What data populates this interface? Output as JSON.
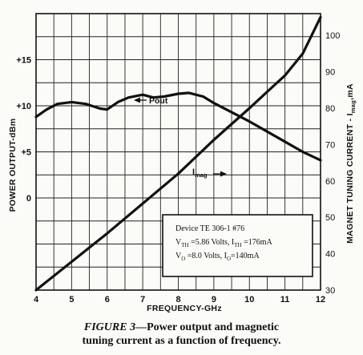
{
  "chart_data": {
    "type": "line",
    "xlabel": "FREQUENCY-GHz",
    "ylabel_left": "POWER OUTPUT-dBm",
    "ylabel_right": "MAGNET TUNING CURRENT - I",
    "ylabel_right_sub": "mag",
    "ylabel_right_unit": ",mA",
    "xlim": [
      4,
      12
    ],
    "ylim_left": [
      -10,
      20
    ],
    "ylim_right": [
      30,
      106
    ],
    "grid": true,
    "x_ticks": [
      "4",
      "5",
      "6",
      "7",
      "8",
      "9",
      "10",
      "11",
      "12"
    ],
    "left_ticks": [
      {
        "value": 15,
        "label": "+15"
      },
      {
        "value": 10,
        "label": "+10"
      },
      {
        "value": 5,
        "label": "+5"
      },
      {
        "value": 0,
        "label": "0"
      }
    ],
    "right_ticks": [
      "30",
      "40",
      "50",
      "60",
      "70",
      "80",
      "90",
      "100"
    ],
    "series": [
      {
        "name": "Pout",
        "axis": "left",
        "x": [
          4.0,
          4.3,
          4.6,
          5.0,
          5.4,
          5.8,
          6.0,
          6.3,
          6.6,
          7.0,
          7.3,
          7.6,
          8.0,
          8.3,
          8.7,
          9.0,
          9.5,
          10.0,
          10.5,
          11.0,
          11.5,
          12.0
        ],
        "y": [
          8.8,
          9.6,
          10.2,
          10.4,
          10.2,
          9.7,
          9.6,
          10.4,
          10.9,
          11.2,
          10.9,
          11.0,
          11.3,
          11.4,
          11.0,
          10.3,
          9.3,
          8.3,
          7.2,
          6.1,
          5.0,
          4.1
        ]
      },
      {
        "name": "I",
        "name_sub": "mag",
        "axis": "right",
        "x": [
          4.0,
          5.0,
          6.0,
          7.0,
          8.0,
          9.0,
          10.0,
          10.5,
          11.0,
          11.5,
          12.0
        ],
        "y": [
          30.0,
          37.8,
          45.6,
          53.8,
          62.0,
          71.3,
          80.0,
          84.5,
          89.0,
          95.0,
          105.0
        ]
      }
    ],
    "annotations": {
      "pout_label": "Pout",
      "imag_label": "I",
      "imag_sub": "mag",
      "box_line1": "Device TE 306-1 #76",
      "box_line2": "V_TH =5.86 Volts, I_TH =176mA",
      "box_line3": "V_O =8.0 Volts, I_O=140mA"
    }
  },
  "caption": {
    "figure": "FIGURE 3",
    "line1": "—Power output and magnetic",
    "line2": "tuning current as a function of frequency."
  }
}
